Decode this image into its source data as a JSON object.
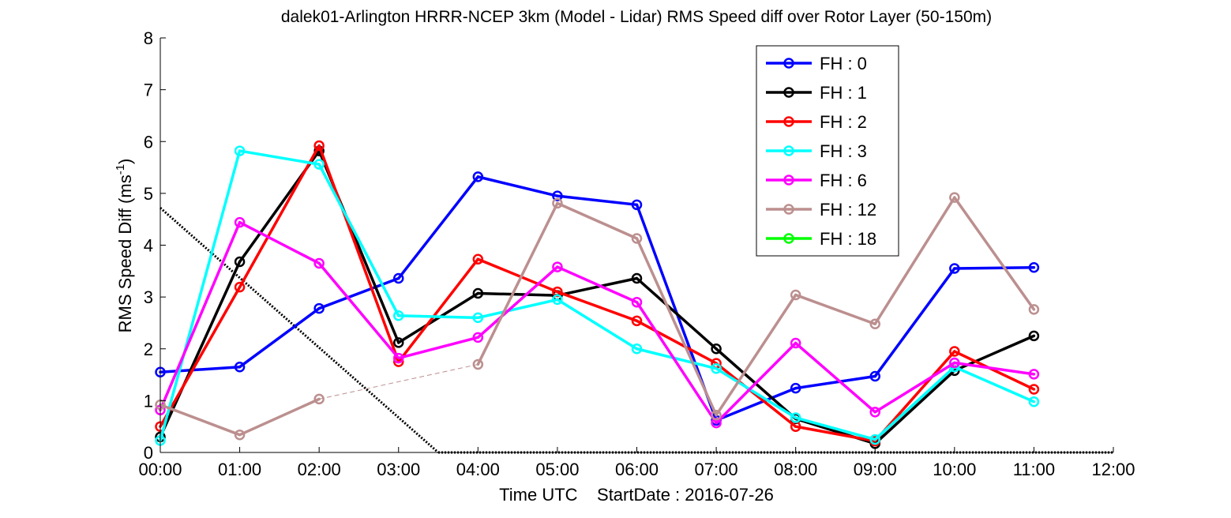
{
  "chart_data": {
    "type": "line",
    "title": "dalek01-Arlington HRRR-NCEP 3km (Model - Lidar) RMS Speed diff over Rotor Layer (50-150m)",
    "xlabel": "Time UTC    StartDate : 2016-07-26",
    "ylabel": {
      "base": "RMS Speed Diff (ms",
      "superscript": "-1",
      "suffix": ")"
    },
    "x_ticks": [
      "00:00",
      "01:00",
      "02:00",
      "03:00",
      "04:00",
      "05:00",
      "06:00",
      "07:00",
      "08:00",
      "09:00",
      "10:00",
      "11:00",
      "12:00"
    ],
    "y_ticks": [
      "0",
      "1",
      "2",
      "3",
      "4",
      "5",
      "6",
      "7",
      "8"
    ],
    "xlim": [
      0,
      12
    ],
    "ylim": [
      0,
      8
    ],
    "grid": false,
    "legend_position": "top-right",
    "series": [
      {
        "name": "FH : 0",
        "color": "#0000ff",
        "points": [
          [
            0,
            1.55
          ],
          [
            1,
            1.65
          ],
          [
            2,
            2.78
          ],
          [
            3,
            3.36
          ],
          [
            4,
            5.32
          ],
          [
            5,
            4.95
          ],
          [
            6,
            4.78
          ],
          [
            7,
            0.62
          ],
          [
            8,
            1.24
          ],
          [
            9,
            1.47
          ],
          [
            10,
            3.55
          ],
          [
            11,
            3.57
          ]
        ]
      },
      {
        "name": "FH : 1",
        "color": "#000000",
        "points": [
          [
            0,
            0.3
          ],
          [
            1,
            3.68
          ],
          [
            2,
            5.82
          ],
          [
            3,
            2.12
          ],
          [
            4,
            3.07
          ],
          [
            5,
            3.03
          ],
          [
            6,
            3.36
          ],
          [
            7,
            2.0
          ],
          [
            8,
            0.65
          ],
          [
            9,
            0.17
          ],
          [
            10,
            1.58
          ],
          [
            11,
            2.25
          ]
        ]
      },
      {
        "name": "FH : 2",
        "color": "#ff0000",
        "points": [
          [
            0,
            0.5
          ],
          [
            1,
            3.19
          ],
          [
            2,
            5.92
          ],
          [
            3,
            1.75
          ],
          [
            4,
            3.73
          ],
          [
            5,
            3.1
          ],
          [
            6,
            2.54
          ],
          [
            7,
            1.72
          ],
          [
            8,
            0.5
          ],
          [
            9,
            0.22
          ],
          [
            10,
            1.95
          ],
          [
            11,
            1.22
          ]
        ]
      },
      {
        "name": "FH : 3",
        "color": "#00ffff",
        "points": [
          [
            0,
            0.23
          ],
          [
            1,
            5.82
          ],
          [
            2,
            5.56
          ],
          [
            3,
            2.64
          ],
          [
            4,
            2.6
          ],
          [
            5,
            2.95
          ],
          [
            6,
            2.0
          ],
          [
            7,
            1.62
          ],
          [
            8,
            0.67
          ],
          [
            9,
            0.25
          ],
          [
            10,
            1.65
          ],
          [
            11,
            0.98
          ]
        ]
      },
      {
        "name": "FH : 6",
        "color": "#ff00ff",
        "points": [
          [
            0,
            0.82
          ],
          [
            1,
            4.44
          ],
          [
            2,
            3.65
          ],
          [
            3,
            1.82
          ],
          [
            4,
            2.22
          ],
          [
            5,
            3.58
          ],
          [
            6,
            2.9
          ],
          [
            7,
            0.57
          ],
          [
            8,
            2.11
          ],
          [
            9,
            0.78
          ],
          [
            10,
            1.73
          ],
          [
            11,
            1.51
          ]
        ]
      },
      {
        "name": "FH : 12",
        "color": "#bc8f8f",
        "points": [
          [
            0,
            0.92
          ],
          [
            1,
            0.34
          ],
          [
            2,
            1.03
          ],
          [
            4,
            1.7
          ],
          [
            5,
            4.81
          ],
          [
            6,
            4.13
          ],
          [
            7,
            0.72
          ],
          [
            8,
            3.04
          ],
          [
            9,
            2.48
          ],
          [
            10,
            4.92
          ],
          [
            11,
            2.76
          ]
        ],
        "dashed_segment": [
          [
            2,
            1.03
          ],
          [
            4,
            1.7
          ]
        ]
      },
      {
        "name": "FH : 18",
        "color": "#00ff00",
        "points": []
      }
    ],
    "reference_line": {
      "style": "dotted",
      "color": "#000000",
      "points": [
        [
          0,
          4.72
        ],
        [
          3.5,
          0
        ]
      ]
    }
  }
}
